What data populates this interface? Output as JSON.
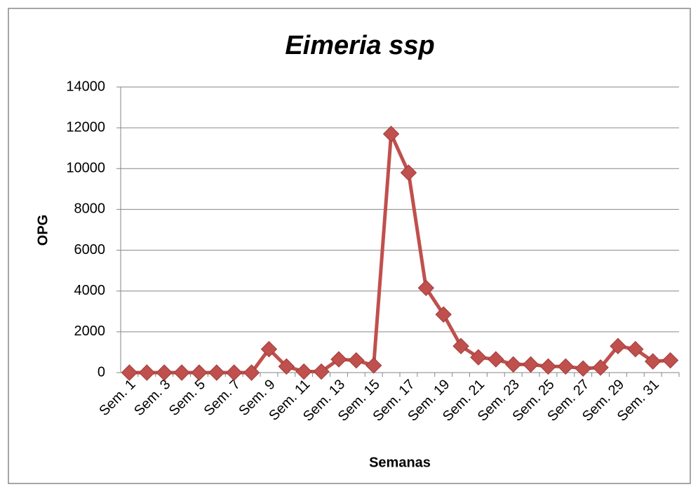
{
  "chart_data": {
    "type": "line",
    "title": "Eimeria ssp",
    "x_label": "Semanas",
    "y_label": "OPG",
    "categories": [
      "Sem. 1",
      null,
      "Sem. 3",
      null,
      "Sem. 5",
      null,
      "Sem. 7",
      null,
      "Sem. 9",
      null,
      "Sem. 11",
      null,
      "Sem. 13",
      null,
      "Sem. 15",
      null,
      "Sem. 17",
      null,
      "Sem. 19",
      null,
      "Sem. 21",
      null,
      "Sem. 23",
      null,
      "Sem. 25",
      null,
      "Sem. 27",
      null,
      "Sem. 29",
      null,
      "Sem. 31",
      null
    ],
    "series": [
      {
        "name": "Eimeria ssp",
        "color": "#c0504d",
        "values": [
          0,
          0,
          0,
          0,
          0,
          0,
          0,
          0,
          1150,
          300,
          50,
          50,
          650,
          600,
          350,
          11700,
          9800,
          4150,
          2850,
          1300,
          750,
          650,
          400,
          400,
          300,
          300,
          200,
          250,
          1300,
          1150,
          550,
          600
        ]
      }
    ],
    "ylim": [
      0,
      14000
    ],
    "yticks": [
      0,
      2000,
      4000,
      6000,
      8000,
      10000,
      12000,
      14000
    ],
    "grid": true,
    "legend": false
  }
}
